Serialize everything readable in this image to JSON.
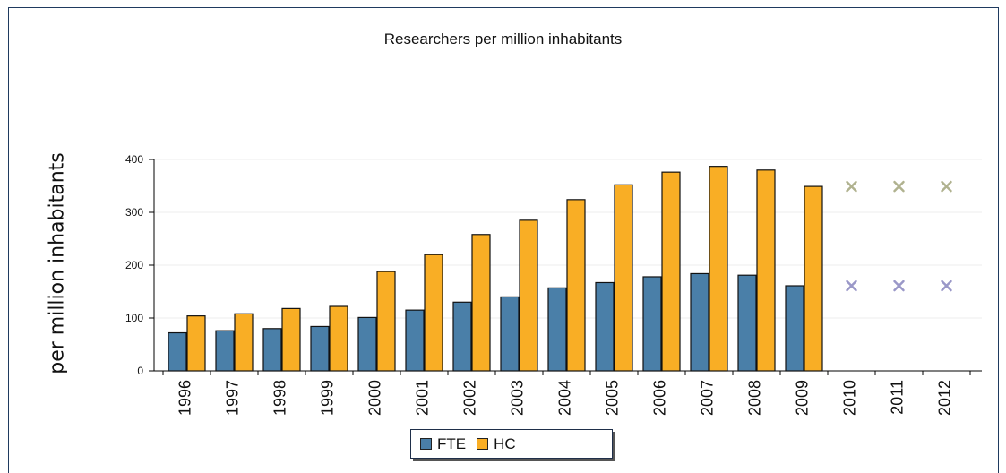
{
  "chart_data": {
    "type": "bar",
    "title": "Researchers per million inhabitants",
    "ylabel": "per million inhabitants",
    "xlabel": "",
    "categories": [
      "1996",
      "1997",
      "1998",
      "1999",
      "2000",
      "2001",
      "2002",
      "2003",
      "2004",
      "2005",
      "2006",
      "2007",
      "2008",
      "2009",
      "2010",
      "2011",
      "2012"
    ],
    "ylim": [
      0,
      400
    ],
    "yticks": [
      0,
      100,
      200,
      300,
      400
    ],
    "grid": true,
    "legend_position": "bottom",
    "series": [
      {
        "name": "FTE",
        "color": "#4a7fa8",
        "values": [
          72,
          76,
          80,
          84,
          101,
          115,
          130,
          140,
          157,
          167,
          178,
          184,
          181,
          161,
          null,
          null,
          null
        ],
        "estimated_markers": [
          null,
          null,
          null,
          null,
          null,
          null,
          null,
          null,
          null,
          null,
          null,
          null,
          null,
          null,
          161,
          161,
          161
        ],
        "marker_color": "#9a98c8"
      },
      {
        "name": "HC",
        "color": "#f9ae25",
        "values": [
          104,
          108,
          118,
          122,
          188,
          220,
          258,
          285,
          324,
          352,
          376,
          387,
          380,
          349,
          null,
          null,
          null
        ],
        "estimated_markers": [
          null,
          null,
          null,
          null,
          null,
          null,
          null,
          null,
          null,
          null,
          null,
          null,
          null,
          null,
          349,
          349,
          349
        ],
        "marker_color": "#b0b28f"
      }
    ]
  }
}
